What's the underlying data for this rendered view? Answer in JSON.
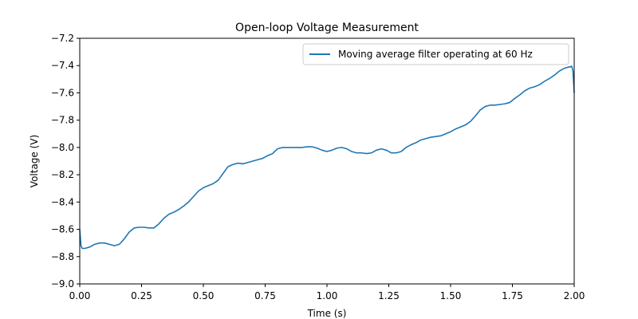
{
  "chart_data": {
    "type": "line",
    "title": "Open-loop Voltage Measurement",
    "xlabel": "Time (s)",
    "ylabel": "Voltage (V)",
    "xlim": [
      0.0,
      2.0
    ],
    "ylim": [
      -9.0,
      -7.2
    ],
    "x_ticks": [
      0.0,
      0.25,
      0.5,
      0.75,
      1.0,
      1.25,
      1.5,
      1.75,
      2.0
    ],
    "x_tick_labels": [
      "0.00",
      "0.25",
      "0.50",
      "0.75",
      "1.00",
      "1.25",
      "1.50",
      "1.75",
      "2.00"
    ],
    "y_ticks": [
      -9.0,
      -8.8,
      -8.6,
      -8.4,
      -8.2,
      -8.0,
      -7.8,
      -7.6,
      -7.4,
      -7.2
    ],
    "y_tick_labels": [
      "−9.0",
      "−8.8",
      "−8.6",
      "−8.4",
      "−8.2",
      "−8.0",
      "−7.8",
      "−7.6",
      "−7.4",
      "−7.2"
    ],
    "grid": false,
    "legend": {
      "placement": "top-right"
    },
    "colors": {
      "series": "#1f77b4"
    },
    "series": [
      {
        "name": "Moving average filter operating at 60 Hz",
        "x": [
          0.0,
          0.005,
          0.01,
          0.02,
          0.04,
          0.06,
          0.08,
          0.1,
          0.12,
          0.14,
          0.16,
          0.18,
          0.2,
          0.22,
          0.24,
          0.26,
          0.28,
          0.3,
          0.32,
          0.34,
          0.36,
          0.38,
          0.4,
          0.42,
          0.44,
          0.46,
          0.48,
          0.5,
          0.52,
          0.54,
          0.56,
          0.58,
          0.6,
          0.62,
          0.64,
          0.66,
          0.68,
          0.7,
          0.72,
          0.74,
          0.76,
          0.78,
          0.8,
          0.82,
          0.84,
          0.86,
          0.88,
          0.9,
          0.92,
          0.94,
          0.96,
          0.98,
          1.0,
          1.02,
          1.04,
          1.06,
          1.08,
          1.1,
          1.12,
          1.14,
          1.16,
          1.18,
          1.2,
          1.22,
          1.24,
          1.26,
          1.28,
          1.3,
          1.32,
          1.34,
          1.36,
          1.38,
          1.4,
          1.42,
          1.44,
          1.46,
          1.48,
          1.5,
          1.52,
          1.54,
          1.56,
          1.58,
          1.6,
          1.62,
          1.64,
          1.66,
          1.68,
          1.7,
          1.72,
          1.74,
          1.76,
          1.78,
          1.8,
          1.82,
          1.84,
          1.86,
          1.88,
          1.9,
          1.92,
          1.94,
          1.96,
          1.98,
          1.99,
          1.995,
          2.0
        ],
        "y": [
          -8.6,
          -8.72,
          -8.74,
          -8.74,
          -8.73,
          -8.71,
          -8.7,
          -8.7,
          -8.71,
          -8.72,
          -8.71,
          -8.67,
          -8.62,
          -8.59,
          -8.585,
          -8.585,
          -8.59,
          -8.59,
          -8.56,
          -8.52,
          -8.49,
          -8.475,
          -8.455,
          -8.43,
          -8.4,
          -8.36,
          -8.32,
          -8.295,
          -8.28,
          -8.265,
          -8.24,
          -8.19,
          -8.14,
          -8.125,
          -8.115,
          -8.12,
          -8.11,
          -8.1,
          -8.09,
          -8.08,
          -8.06,
          -8.045,
          -8.01,
          -8.0,
          -8.0,
          -8.0,
          -8.0,
          -8.0,
          -7.995,
          -7.995,
          -8.005,
          -8.02,
          -8.03,
          -8.02,
          -8.005,
          -8.0,
          -8.01,
          -8.03,
          -8.04,
          -8.04,
          -8.045,
          -8.04,
          -8.02,
          -8.01,
          -8.02,
          -8.04,
          -8.04,
          -8.03,
          -8.0,
          -7.98,
          -7.965,
          -7.945,
          -7.935,
          -7.925,
          -7.92,
          -7.915,
          -7.9,
          -7.885,
          -7.865,
          -7.85,
          -7.835,
          -7.81,
          -7.77,
          -7.725,
          -7.7,
          -7.69,
          -7.69,
          -7.685,
          -7.68,
          -7.67,
          -7.64,
          -7.615,
          -7.585,
          -7.565,
          -7.555,
          -7.54,
          -7.515,
          -7.495,
          -7.47,
          -7.44,
          -7.42,
          -7.41,
          -7.405,
          -7.44,
          -7.6
        ]
      }
    ]
  }
}
